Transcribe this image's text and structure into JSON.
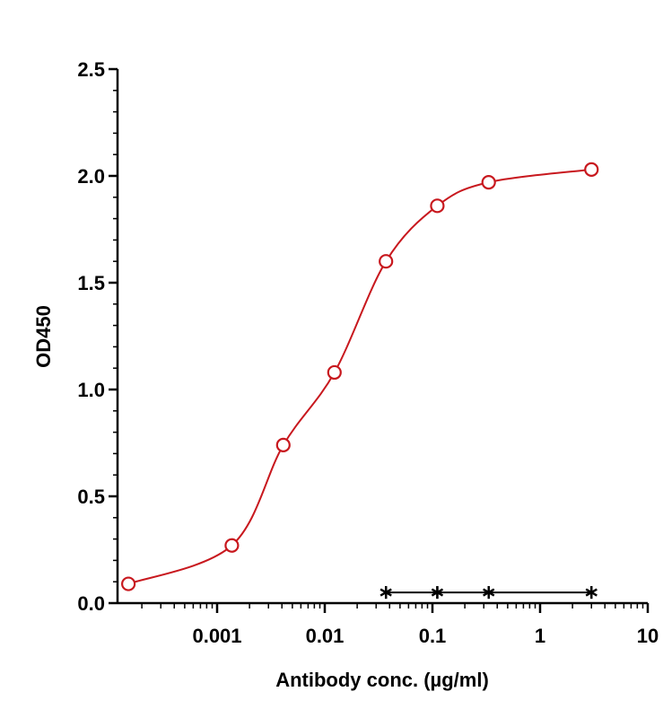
{
  "chart_data": {
    "type": "scatter",
    "title": "",
    "xlabel": "Antibody conc. (µg/ml)",
    "ylabel": "OD450",
    "xscale": "log",
    "xlim": [
      0.0001,
      10
    ],
    "ylim": [
      0,
      2.5
    ],
    "x_ticks": [
      {
        "value": 0.001,
        "label": "0.001"
      },
      {
        "value": 0.01,
        "label": "0.01"
      },
      {
        "value": 0.1,
        "label": "0.1"
      },
      {
        "value": 1,
        "label": "1"
      },
      {
        "value": 10,
        "label": "10"
      }
    ],
    "y_ticks": [
      {
        "value": 0,
        "label": "0.0"
      },
      {
        "value": 0.5,
        "label": "0.5"
      },
      {
        "value": 1.0,
        "label": "1.0"
      },
      {
        "value": 1.5,
        "label": "1.5"
      },
      {
        "value": 2.0,
        "label": "2.0"
      },
      {
        "value": 2.5,
        "label": "2.5"
      }
    ],
    "grid": false,
    "legend": "none",
    "series": [
      {
        "marker": "open-circle",
        "color": "#c8181e",
        "fit_curve": true,
        "points": [
          {
            "x": 0.00015,
            "y": 0.09
          },
          {
            "x": 0.00137,
            "y": 0.27
          },
          {
            "x": 0.00412,
            "y": 0.74
          },
          {
            "x": 0.0123,
            "y": 1.08
          },
          {
            "x": 0.037,
            "y": 1.6
          },
          {
            "x": 0.111,
            "y": 1.86
          },
          {
            "x": 0.333,
            "y": 1.97
          },
          {
            "x": 3.0,
            "y": 2.03
          }
        ]
      },
      {
        "marker": "asterisk",
        "color": "#000000",
        "fit_curve": false,
        "connect": true,
        "points": [
          {
            "x": 0.037,
            "y": 0.05
          },
          {
            "x": 0.111,
            "y": 0.05
          },
          {
            "x": 0.333,
            "y": 0.05
          },
          {
            "x": 3.0,
            "y": 0.05
          }
        ]
      }
    ]
  }
}
